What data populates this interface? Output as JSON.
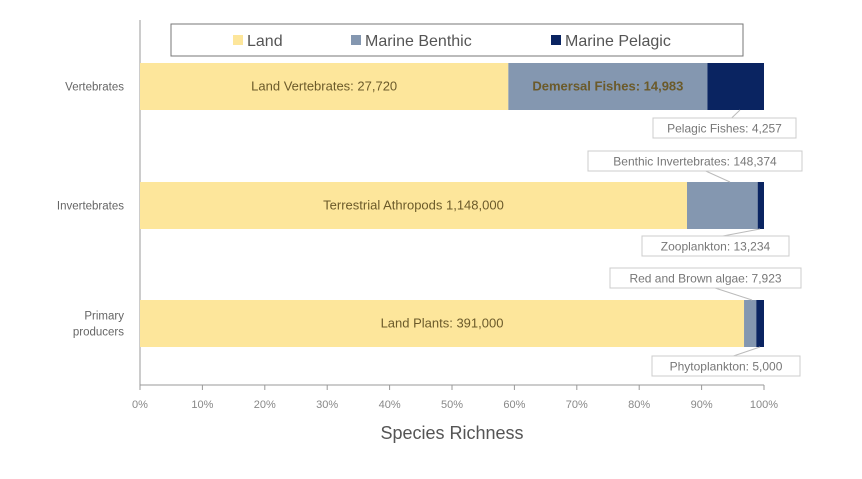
{
  "chart_data": {
    "type": "bar",
    "orientation": "horizontal",
    "stacking": "percent",
    "title": "",
    "xlabel": "Species Richness",
    "ylabel": "",
    "xlim": [
      0,
      100
    ],
    "x_ticks": [
      "0%",
      "10%",
      "20%",
      "30%",
      "40%",
      "50%",
      "60%",
      "70%",
      "80%",
      "90%",
      "100%"
    ],
    "grid": false,
    "legend_position": "top",
    "categories": [
      "Vertebrates",
      "Invertebrates",
      "Primary producers"
    ],
    "series": [
      {
        "name": "Land",
        "color": "#fde69b",
        "values": [
          27720,
          1148000,
          391000
        ],
        "labels": [
          "Land Vertebrates: 27,720",
          "Terrestrial Athropods 1,148,000",
          "Land Plants: 391,000"
        ]
      },
      {
        "name": "Marine Benthic",
        "color": "#8497b0",
        "values": [
          14983,
          148374,
          7923
        ],
        "labels": [
          "Demersal Fishes: 14,983",
          "Benthic Invertebrates: 148,374",
          "Red and Brown algae: 7,923"
        ]
      },
      {
        "name": "Marine Pelagic",
        "color": "#0a2461",
        "values": [
          4257,
          13234,
          5000
        ],
        "labels": [
          "Pelagic Fishes: 4,257",
          "Zooplankton: 13,234",
          "Phytoplankton: 5,000"
        ]
      }
    ]
  }
}
